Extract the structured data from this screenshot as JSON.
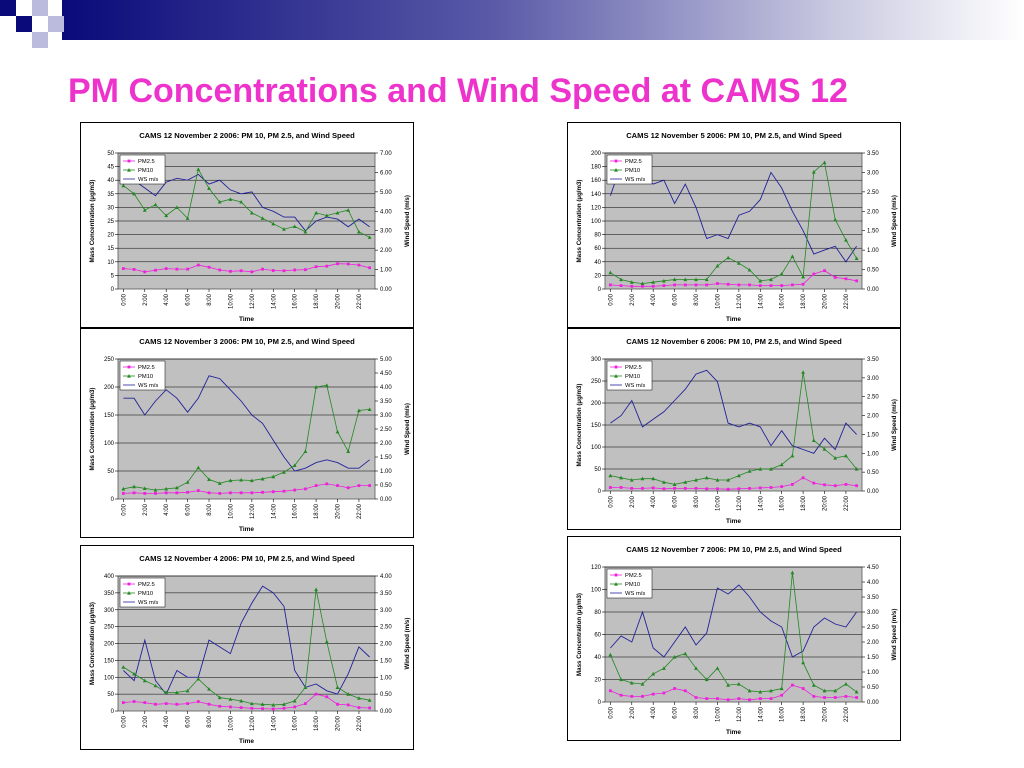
{
  "slide": {
    "title": "PM Concentrations and Wind Speed at CAMS 12"
  },
  "colors": {
    "pm25": "#ee22dd",
    "pm10": "#228822",
    "ws": "#222299",
    "plot_bg": "#c0c0c0",
    "title": "#ee33cc"
  },
  "chart_data": [
    {
      "type": "line",
      "title": "CAMS 12 November 2 2006: PM 10, PM 2.5, and Wind Speed",
      "xlabel": "Time",
      "ylabel": "Mass Concentration (µg/m3)",
      "y2label": "Wind Speed (m/s)",
      "ylim": [
        0,
        50
      ],
      "yticks": [
        0,
        5,
        10,
        15,
        20,
        25,
        30,
        35,
        40,
        45,
        50
      ],
      "y2lim": [
        0,
        7
      ],
      "y2ticks": [
        "0.00",
        "1.00",
        "2.00",
        "3.00",
        "4.00",
        "5.00",
        "6.00",
        "7.00"
      ],
      "xticks": [
        "0:00",
        "2:00",
        "4:00",
        "6:00",
        "8:00",
        "10:00",
        "12:00",
        "14:00",
        "16:00",
        "18:00",
        "20:00",
        "22:00"
      ],
      "grid": true,
      "legend": "top-left",
      "series": [
        {
          "name": "PM2.5",
          "axis": "left",
          "values": [
            7.5,
            7.2,
            6.3,
            6.9,
            7.5,
            7.3,
            7.3,
            8.8,
            8.0,
            7.0,
            6.5,
            6.7,
            6.3,
            7.3,
            6.8,
            6.7,
            7.0,
            7.1,
            8.2,
            8.4,
            9.3,
            9.2,
            8.8,
            7.8
          ]
        },
        {
          "name": "PM10",
          "axis": "left",
          "values": [
            38,
            35,
            29,
            31,
            27,
            30,
            26,
            44,
            37,
            32,
            33,
            32,
            28,
            26,
            24,
            22,
            23,
            21,
            28,
            27,
            28,
            29,
            21,
            19
          ]
        },
        {
          "name": "WS m/s",
          "axis": "right",
          "values": [
            5.4,
            5.6,
            5.2,
            4.8,
            5.5,
            5.7,
            5.6,
            5.9,
            5.4,
            5.6,
            5.1,
            4.9,
            5.0,
            4.2,
            4.0,
            3.7,
            3.7,
            3.0,
            3.5,
            3.7,
            3.6,
            3.2,
            3.6,
            3.2
          ]
        }
      ]
    },
    {
      "type": "line",
      "title": "CAMS 12 November 3 2006: PM 10, PM 2.5, and Wind Speed",
      "xlabel": "Time",
      "ylabel": "Mass Concentration (µg/m3)",
      "y2label": "Wind Speed (m/s)",
      "ylim": [
        0,
        250
      ],
      "yticks": [
        0,
        50,
        100,
        150,
        200,
        250
      ],
      "y2lim": [
        0,
        5
      ],
      "y2ticks": [
        "0.00",
        "0.50",
        "1.00",
        "1.50",
        "2.00",
        "2.50",
        "3.00",
        "3.50",
        "4.00",
        "4.50",
        "5.00"
      ],
      "xticks": [
        "0:00",
        "2:00",
        "4:00",
        "6:00",
        "8:00",
        "10:00",
        "12:00",
        "14:00",
        "16:00",
        "18:00",
        "20:00",
        "22:00"
      ],
      "grid": true,
      "legend": "top-left",
      "series": [
        {
          "name": "PM2.5",
          "axis": "left",
          "values": [
            10,
            11,
            10,
            10,
            11,
            11,
            12,
            15,
            11,
            10,
            11,
            11,
            11,
            12,
            13,
            14,
            16,
            18,
            24,
            27,
            24,
            20,
            24,
            24
          ]
        },
        {
          "name": "PM10",
          "axis": "left",
          "values": [
            18,
            22,
            19,
            16,
            18,
            20,
            30,
            56,
            35,
            28,
            33,
            34,
            33,
            36,
            40,
            48,
            60,
            85,
            200,
            203,
            120,
            85,
            158,
            160
          ]
        },
        {
          "name": "WS m/s",
          "axis": "right",
          "values": [
            3.6,
            3.6,
            3.0,
            3.5,
            3.9,
            3.6,
            3.1,
            3.6,
            4.4,
            4.3,
            3.9,
            3.5,
            3.0,
            2.7,
            2.1,
            1.5,
            1.0,
            1.1,
            1.3,
            1.4,
            1.3,
            1.1,
            1.1,
            1.4
          ]
        }
      ]
    },
    {
      "type": "line",
      "title": "CAMS 12 November 4 2006: PM 10, PM 2.5, and Wind Speed",
      "xlabel": "Time",
      "ylabel": "Mass Concentration (µg/m3)",
      "y2label": "Wind Speed (m/s)",
      "ylim": [
        0,
        400
      ],
      "yticks": [
        0,
        50,
        100,
        150,
        200,
        250,
        300,
        350,
        400
      ],
      "y2lim": [
        0,
        4
      ],
      "y2ticks": [
        "0.00",
        "0.50",
        "1.00",
        "1.50",
        "2.00",
        "2.50",
        "3.00",
        "3.50",
        "4.00"
      ],
      "xticks": [
        "0:00",
        "2:00",
        "4:00",
        "6:00",
        "8:00",
        "10:00",
        "12:00",
        "14:00",
        "16:00",
        "18:00",
        "20:00",
        "22:00"
      ],
      "grid": true,
      "legend": "top-left",
      "series": [
        {
          "name": "PM2.5",
          "axis": "left",
          "values": [
            25,
            28,
            25,
            20,
            22,
            20,
            22,
            28,
            20,
            14,
            12,
            10,
            8,
            7,
            6,
            8,
            12,
            22,
            50,
            42,
            20,
            18,
            10,
            9
          ]
        },
        {
          "name": "PM10",
          "axis": "left",
          "values": [
            130,
            110,
            90,
            75,
            55,
            55,
            60,
            95,
            65,
            40,
            35,
            30,
            22,
            20,
            18,
            20,
            30,
            70,
            360,
            205,
            70,
            50,
            38,
            32
          ]
        },
        {
          "name": "WS m/s",
          "axis": "right",
          "values": [
            1.2,
            0.9,
            2.1,
            0.9,
            0.5,
            1.2,
            1.0,
            1.0,
            2.1,
            1.9,
            1.7,
            2.6,
            3.2,
            3.7,
            3.5,
            3.1,
            1.2,
            0.7,
            0.8,
            0.6,
            0.5,
            1.1,
            1.9,
            1.6
          ]
        }
      ]
    },
    {
      "type": "line",
      "title": "CAMS 12 November 5 2006: PM 10, PM 2.5, and Wind Speed",
      "xlabel": "Time",
      "ylabel": "Mass Concentration (µg/m3)",
      "y2label": "Wind Speed (m/s)",
      "ylim": [
        0,
        200
      ],
      "yticks": [
        0,
        20,
        40,
        60,
        80,
        100,
        120,
        140,
        160,
        180,
        200
      ],
      "y2lim": [
        0,
        3.5
      ],
      "y2ticks": [
        "0.00",
        "0.50",
        "1.00",
        "1.50",
        "2.00",
        "2.50",
        "3.00",
        "3.50"
      ],
      "xticks": [
        "0:00",
        "2:00",
        "4:00",
        "6:00",
        "8:00",
        "10:00",
        "12:00",
        "14:00",
        "16:00",
        "18:00",
        "20:00",
        "22:00"
      ],
      "grid": true,
      "legend": "top-left",
      "series": [
        {
          "name": "PM2.5",
          "axis": "left",
          "values": [
            6,
            5,
            4,
            4,
            4,
            5,
            6,
            6,
            6,
            6,
            8,
            7,
            6,
            6,
            5,
            5,
            5,
            6,
            7,
            22,
            27,
            17,
            15,
            12
          ]
        },
        {
          "name": "PM10",
          "axis": "left",
          "values": [
            24,
            14,
            10,
            8,
            10,
            12,
            14,
            14,
            14,
            14,
            34,
            46,
            38,
            28,
            12,
            14,
            22,
            48,
            18,
            172,
            186,
            102,
            72,
            45
          ]
        },
        {
          "name": "WS m/s",
          "axis": "right",
          "values": [
            2.4,
            3.2,
            3.1,
            2.9,
            2.7,
            2.8,
            2.2,
            2.7,
            2.1,
            1.3,
            1.4,
            1.3,
            1.9,
            2.0,
            2.3,
            3.0,
            2.6,
            2.0,
            1.5,
            0.9,
            1.0,
            1.1,
            0.7,
            1.1
          ]
        }
      ]
    },
    {
      "type": "line",
      "title": "CAMS 12 November 6 2006: PM 10, PM 2.5, and Wind Speed",
      "xlabel": "Time",
      "ylabel": "Mass Concentration (µg/m3)",
      "y2label": "Wind Speed (m/s)",
      "ylim": [
        0,
        300
      ],
      "yticks": [
        0,
        50,
        100,
        150,
        200,
        250,
        300
      ],
      "y2lim": [
        0,
        3.5
      ],
      "y2ticks": [
        "0.00",
        "0.50",
        "1.00",
        "1.50",
        "2.00",
        "2.50",
        "3.00",
        "3.50"
      ],
      "xticks": [
        "0:00",
        "2:00",
        "4:00",
        "6:00",
        "8:00",
        "10:00",
        "12:00",
        "14:00",
        "16:00",
        "18:00",
        "20:00",
        "22:00"
      ],
      "grid": true,
      "legend": "top-left",
      "series": [
        {
          "name": "PM2.5",
          "axis": "left",
          "values": [
            8,
            8,
            6,
            6,
            7,
            5,
            6,
            6,
            6,
            5,
            5,
            4,
            5,
            6,
            7,
            8,
            10,
            15,
            30,
            18,
            14,
            12,
            15,
            12
          ]
        },
        {
          "name": "PM10",
          "axis": "left",
          "values": [
            35,
            30,
            25,
            28,
            28,
            20,
            15,
            20,
            25,
            30,
            25,
            25,
            35,
            45,
            50,
            50,
            60,
            80,
            270,
            115,
            95,
            75,
            80,
            50
          ]
        },
        {
          "name": "WS m/s",
          "axis": "right",
          "values": [
            1.8,
            2.0,
            2.4,
            1.7,
            1.9,
            2.1,
            2.4,
            2.7,
            3.1,
            3.2,
            2.9,
            1.8,
            1.7,
            1.8,
            1.7,
            1.2,
            1.6,
            1.2,
            1.1,
            1.0,
            1.4,
            1.1,
            1.8,
            1.5
          ]
        }
      ]
    },
    {
      "type": "line",
      "title": "CAMS 12 November 7 2006: PM 10, PM 2.5, and Wind Speed",
      "xlabel": "Time",
      "ylabel": "Mass Concentration (µg/m3)",
      "y2label": "Wind Speed (m/s)",
      "ylim": [
        0,
        120
      ],
      "yticks": [
        0,
        20,
        40,
        60,
        80,
        100,
        120
      ],
      "y2lim": [
        0,
        4.5
      ],
      "y2ticks": [
        "0.00",
        "0.50",
        "1.00",
        "1.50",
        "2.00",
        "2.50",
        "3.00",
        "3.50",
        "4.00",
        "4.50"
      ],
      "xticks": [
        "0:00",
        "2:00",
        "4:00",
        "6:00",
        "8:00",
        "10:00",
        "12:00",
        "14:00",
        "16:00",
        "18:00",
        "20:00",
        "22:00"
      ],
      "grid": true,
      "legend": "top-left",
      "series": [
        {
          "name": "PM2.5",
          "axis": "left",
          "values": [
            10,
            6,
            5,
            5,
            7,
            8,
            12,
            10,
            4,
            3,
            3,
            2,
            3,
            2,
            3,
            3,
            6,
            15,
            12,
            5,
            4,
            4,
            5,
            4
          ]
        },
        {
          "name": "PM10",
          "axis": "left",
          "values": [
            42,
            20,
            17,
            16,
            25,
            30,
            40,
            43,
            30,
            20,
            30,
            15,
            16,
            10,
            9,
            10,
            12,
            115,
            35,
            15,
            10,
            10,
            16,
            9
          ]
        },
        {
          "name": "WS m/s",
          "axis": "right",
          "values": [
            1.8,
            2.2,
            2.0,
            3.0,
            1.8,
            1.5,
            2.0,
            2.5,
            1.9,
            2.3,
            3.8,
            3.6,
            3.9,
            3.5,
            3.0,
            2.7,
            2.5,
            1.5,
            1.7,
            2.5,
            2.8,
            2.6,
            2.5,
            3.0
          ]
        }
      ]
    }
  ]
}
